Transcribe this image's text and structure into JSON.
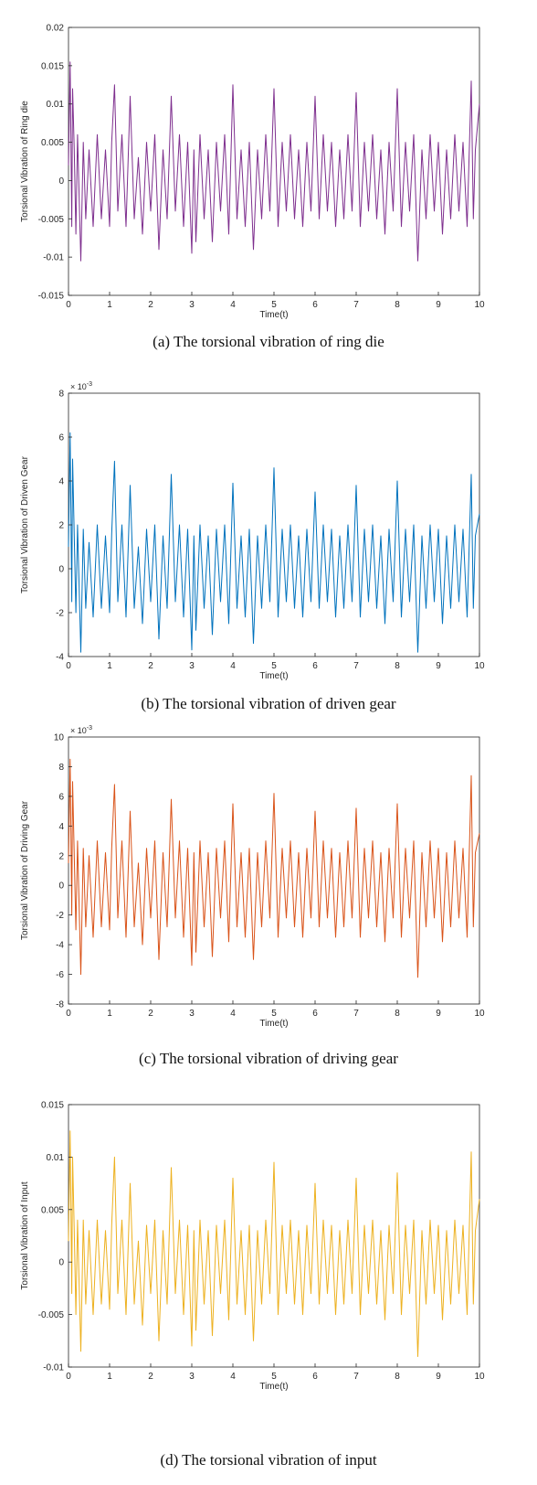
{
  "chart_data": [
    {
      "type": "line",
      "caption": "(a) The torsional vibration of ring die",
      "xlabel": "Time(t)",
      "ylabel": "Torsional Vibration of Ring  die",
      "xlim": [
        0,
        10
      ],
      "ylim": [
        -0.015,
        0.02
      ],
      "xticks": [
        "0",
        "1",
        "2",
        "3",
        "4",
        "5",
        "6",
        "7",
        "8",
        "9",
        "10"
      ],
      "yticks": [
        "0.02",
        "0.015",
        "0.01",
        "0.005",
        "0",
        "-0.005",
        "-0.01",
        "-0.015"
      ],
      "exponent": "",
      "series": [
        {
          "color": "#7E2F8E",
          "x": [
            0,
            0.04,
            0.08,
            0.1,
            0.14,
            0.18,
            0.22,
            0.3,
            0.36,
            0.42,
            0.5,
            0.6,
            0.7,
            0.8,
            0.9,
            1.0,
            1.05,
            1.12,
            1.2,
            1.3,
            1.4,
            1.5,
            1.6,
            1.7,
            1.8,
            1.9,
            2.0,
            2.1,
            2.2,
            2.3,
            2.4,
            2.5,
            2.6,
            2.7,
            2.8,
            2.9,
            3.0,
            3.05,
            3.1,
            3.2,
            3.3,
            3.4,
            3.5,
            3.6,
            3.7,
            3.8,
            3.9,
            4.0,
            4.1,
            4.2,
            4.3,
            4.4,
            4.5,
            4.6,
            4.7,
            4.8,
            4.9,
            5.0,
            5.1,
            5.2,
            5.3,
            5.4,
            5.5,
            5.6,
            5.7,
            5.8,
            5.9,
            6.0,
            6.1,
            6.2,
            6.3,
            6.4,
            6.5,
            6.6,
            6.7,
            6.8,
            6.9,
            7.0,
            7.1,
            7.2,
            7.3,
            7.4,
            7.5,
            7.6,
            7.7,
            7.8,
            7.9,
            8.0,
            8.1,
            8.2,
            8.3,
            8.4,
            8.5,
            8.6,
            8.7,
            8.8,
            8.9,
            9.0,
            9.1,
            9.2,
            9.3,
            9.4,
            9.5,
            9.6,
            9.7,
            9.8,
            9.85,
            9.9,
            10.0
          ],
          "y": [
            0.002,
            0.0155,
            -0.006,
            0.012,
            0.004,
            -0.007,
            0.006,
            -0.0105,
            0.005,
            -0.005,
            0.004,
            -0.006,
            0.006,
            -0.005,
            0.004,
            -0.006,
            0.005,
            0.0125,
            -0.004,
            0.006,
            -0.006,
            0.011,
            -0.005,
            0.003,
            -0.007,
            0.005,
            -0.004,
            0.006,
            -0.009,
            0.004,
            -0.005,
            0.011,
            -0.004,
            0.006,
            -0.006,
            0.005,
            -0.0095,
            0.004,
            -0.008,
            0.006,
            -0.005,
            0.004,
            -0.008,
            0.005,
            -0.004,
            0.006,
            -0.007,
            0.0125,
            -0.005,
            0.004,
            -0.006,
            0.005,
            -0.009,
            0.004,
            -0.005,
            0.006,
            -0.004,
            0.012,
            -0.006,
            0.005,
            -0.004,
            0.006,
            -0.005,
            0.004,
            -0.006,
            0.005,
            -0.004,
            0.011,
            -0.005,
            0.006,
            -0.004,
            0.005,
            -0.006,
            0.004,
            -0.005,
            0.006,
            -0.004,
            0.0115,
            -0.006,
            0.005,
            -0.004,
            0.006,
            -0.005,
            0.004,
            -0.007,
            0.005,
            -0.004,
            0.012,
            -0.006,
            0.005,
            -0.004,
            0.006,
            -0.0105,
            0.004,
            -0.005,
            0.006,
            -0.004,
            0.005,
            -0.007,
            0.004,
            -0.005,
            0.006,
            -0.004,
            0.005,
            -0.006,
            0.013,
            -0.005,
            0.004,
            0.01
          ]
        }
      ]
    },
    {
      "type": "line",
      "caption": "(b) The torsional vibration of driven gear",
      "xlabel": "Time(t)",
      "ylabel": "Torsional Vibration of Driven Gear",
      "xlim": [
        0,
        10
      ],
      "ylim": [
        -4,
        8
      ],
      "xticks": [
        "0",
        "1",
        "2",
        "3",
        "4",
        "5",
        "6",
        "7",
        "8",
        "9",
        "10"
      ],
      "yticks": [
        "8",
        "6",
        "4",
        "2",
        "0",
        "-2",
        "-4"
      ],
      "exponent": "10",
      "exponent_power": "-3",
      "series": [
        {
          "color": "#0072BD",
          "x": [
            0,
            0.04,
            0.08,
            0.1,
            0.14,
            0.18,
            0.22,
            0.3,
            0.36,
            0.42,
            0.5,
            0.6,
            0.7,
            0.8,
            0.9,
            1.0,
            1.05,
            1.12,
            1.2,
            1.3,
            1.4,
            1.5,
            1.6,
            1.7,
            1.8,
            1.9,
            2.0,
            2.1,
            2.2,
            2.3,
            2.4,
            2.5,
            2.6,
            2.7,
            2.8,
            2.9,
            3.0,
            3.05,
            3.1,
            3.2,
            3.3,
            3.4,
            3.5,
            3.6,
            3.7,
            3.8,
            3.9,
            4.0,
            4.1,
            4.2,
            4.3,
            4.4,
            4.5,
            4.6,
            4.7,
            4.8,
            4.9,
            5.0,
            5.1,
            5.2,
            5.3,
            5.4,
            5.5,
            5.6,
            5.7,
            5.8,
            5.9,
            6.0,
            6.1,
            6.2,
            6.3,
            6.4,
            6.5,
            6.6,
            6.7,
            6.8,
            6.9,
            7.0,
            7.1,
            7.2,
            7.3,
            7.4,
            7.5,
            7.6,
            7.7,
            7.8,
            7.9,
            8.0,
            8.1,
            8.2,
            8.3,
            8.4,
            8.5,
            8.6,
            8.7,
            8.8,
            8.9,
            9.0,
            9.1,
            9.2,
            9.3,
            9.4,
            9.5,
            9.6,
            9.7,
            9.8,
            9.85,
            9.9,
            10.0
          ],
          "y": [
            1.0,
            6.2,
            -1.5,
            5.0,
            1.5,
            -2.0,
            2.0,
            -3.8,
            1.8,
            -1.8,
            1.2,
            -2.2,
            2.0,
            -1.8,
            1.5,
            -2.0,
            1.6,
            4.9,
            -1.5,
            2.0,
            -2.2,
            3.8,
            -1.8,
            1.0,
            -2.5,
            1.8,
            -1.5,
            2.0,
            -3.2,
            1.5,
            -1.8,
            4.3,
            -1.5,
            2.0,
            -2.2,
            1.8,
            -3.7,
            1.5,
            -2.8,
            2.0,
            -1.8,
            1.5,
            -3.0,
            1.8,
            -1.5,
            2.0,
            -2.5,
            3.9,
            -1.8,
            1.5,
            -2.2,
            1.8,
            -3.4,
            1.5,
            -1.8,
            2.0,
            -1.5,
            4.6,
            -2.2,
            1.8,
            -1.5,
            2.0,
            -1.8,
            1.5,
            -2.2,
            1.8,
            -1.5,
            3.5,
            -1.8,
            2.0,
            -1.5,
            1.8,
            -2.2,
            1.5,
            -1.8,
            2.0,
            -1.5,
            3.8,
            -2.2,
            1.8,
            -1.5,
            2.0,
            -1.8,
            1.5,
            -2.5,
            1.8,
            -1.5,
            4.0,
            -2.2,
            1.8,
            -1.5,
            2.0,
            -3.8,
            1.5,
            -1.8,
            2.0,
            -1.5,
            1.8,
            -2.5,
            1.5,
            -1.8,
            2.0,
            -1.5,
            1.8,
            -2.2,
            4.3,
            -1.8,
            1.5,
            2.5
          ]
        }
      ]
    },
    {
      "type": "line",
      "caption": "(c) The torsional vibration of driving gear",
      "xlabel": "Time(t)",
      "ylabel": "Torsional Vibration of Driving Gear",
      "xlim": [
        0,
        10
      ],
      "ylim": [
        -8,
        10
      ],
      "xticks": [
        "0",
        "1",
        "2",
        "3",
        "4",
        "5",
        "6",
        "7",
        "8",
        "9",
        "10"
      ],
      "yticks": [
        "10",
        "8",
        "6",
        "4",
        "2",
        "0",
        "-2",
        "-4",
        "-6",
        "-8"
      ],
      "exponent": "10",
      "exponent_power": "-3",
      "series": [
        {
          "color": "#D95319",
          "x": [
            0,
            0.04,
            0.08,
            0.1,
            0.14,
            0.18,
            0.22,
            0.3,
            0.36,
            0.42,
            0.5,
            0.6,
            0.7,
            0.8,
            0.9,
            1.0,
            1.05,
            1.12,
            1.2,
            1.3,
            1.4,
            1.5,
            1.6,
            1.7,
            1.8,
            1.9,
            2.0,
            2.1,
            2.2,
            2.3,
            2.4,
            2.5,
            2.6,
            2.7,
            2.8,
            2.9,
            3.0,
            3.05,
            3.1,
            3.2,
            3.3,
            3.4,
            3.5,
            3.6,
            3.7,
            3.8,
            3.9,
            4.0,
            4.1,
            4.2,
            4.3,
            4.4,
            4.5,
            4.6,
            4.7,
            4.8,
            4.9,
            5.0,
            5.1,
            5.2,
            5.3,
            5.4,
            5.5,
            5.6,
            5.7,
            5.8,
            5.9,
            6.0,
            6.1,
            6.2,
            6.3,
            6.4,
            6.5,
            6.6,
            6.7,
            6.8,
            6.9,
            7.0,
            7.1,
            7.2,
            7.3,
            7.4,
            7.5,
            7.6,
            7.7,
            7.8,
            7.9,
            8.0,
            8.1,
            8.2,
            8.3,
            8.4,
            8.5,
            8.6,
            8.7,
            8.8,
            8.9,
            9.0,
            9.1,
            9.2,
            9.3,
            9.4,
            9.5,
            9.6,
            9.7,
            9.8,
            9.85,
            9.9,
            10.0
          ],
          "y": [
            1.5,
            8.5,
            -2.0,
            7.0,
            2.0,
            -3.0,
            3.0,
            -6.0,
            2.5,
            -2.8,
            2.0,
            -3.5,
            3.0,
            -2.8,
            2.2,
            -3.0,
            2.5,
            6.8,
            -2.2,
            3.0,
            -3.5,
            5.0,
            -2.8,
            1.5,
            -4.0,
            2.5,
            -2.2,
            3.0,
            -5.0,
            2.2,
            -2.8,
            5.8,
            -2.2,
            3.0,
            -3.5,
            2.5,
            -5.4,
            2.2,
            -4.5,
            3.0,
            -2.8,
            2.2,
            -4.8,
            2.5,
            -2.2,
            3.0,
            -3.8,
            5.5,
            -2.8,
            2.2,
            -3.5,
            2.5,
            -5.0,
            2.2,
            -2.8,
            3.0,
            -2.2,
            6.2,
            -3.5,
            2.5,
            -2.2,
            3.0,
            -2.8,
            2.2,
            -3.5,
            2.5,
            -2.2,
            5.0,
            -2.8,
            3.0,
            -2.2,
            2.5,
            -3.5,
            2.2,
            -2.8,
            3.0,
            -2.2,
            5.2,
            -3.5,
            2.5,
            -2.2,
            3.0,
            -2.8,
            2.2,
            -3.8,
            2.5,
            -2.2,
            5.5,
            -3.5,
            2.5,
            -2.2,
            3.0,
            -6.2,
            2.2,
            -2.8,
            3.0,
            -2.2,
            2.5,
            -3.8,
            2.2,
            -2.8,
            3.0,
            -2.2,
            2.5,
            -3.5,
            7.4,
            -2.8,
            2.2,
            3.5
          ]
        }
      ]
    },
    {
      "type": "line",
      "caption": "(d) The torsional vibration of input",
      "xlabel": "Time(t)",
      "ylabel": "Torsional Vibration of Input",
      "xlim": [
        0,
        10
      ],
      "ylim": [
        -0.01,
        0.015
      ],
      "xticks": [
        "0",
        "1",
        "2",
        "3",
        "4",
        "5",
        "6",
        "7",
        "8",
        "9",
        "10"
      ],
      "yticks": [
        "0.015",
        "0.01",
        "0.005",
        "0",
        "-0.005",
        "-0.01"
      ],
      "exponent": "",
      "series": [
        {
          "color": "#EDB120",
          "x": [
            0,
            0.04,
            0.08,
            0.1,
            0.14,
            0.18,
            0.22,
            0.3,
            0.36,
            0.42,
            0.5,
            0.6,
            0.7,
            0.8,
            0.9,
            1.0,
            1.05,
            1.12,
            1.2,
            1.3,
            1.4,
            1.5,
            1.6,
            1.7,
            1.8,
            1.9,
            2.0,
            2.1,
            2.2,
            2.3,
            2.4,
            2.5,
            2.6,
            2.7,
            2.8,
            2.9,
            3.0,
            3.05,
            3.1,
            3.2,
            3.3,
            3.4,
            3.5,
            3.6,
            3.7,
            3.8,
            3.9,
            4.0,
            4.1,
            4.2,
            4.3,
            4.4,
            4.5,
            4.6,
            4.7,
            4.8,
            4.9,
            5.0,
            5.1,
            5.2,
            5.3,
            5.4,
            5.5,
            5.6,
            5.7,
            5.8,
            5.9,
            6.0,
            6.1,
            6.2,
            6.3,
            6.4,
            6.5,
            6.6,
            6.7,
            6.8,
            6.9,
            7.0,
            7.1,
            7.2,
            7.3,
            7.4,
            7.5,
            7.6,
            7.7,
            7.8,
            7.9,
            8.0,
            8.1,
            8.2,
            8.3,
            8.4,
            8.5,
            8.6,
            8.7,
            8.8,
            8.9,
            9.0,
            9.1,
            9.2,
            9.3,
            9.4,
            9.5,
            9.6,
            9.7,
            9.8,
            9.85,
            9.9,
            10.0
          ],
          "y": [
            0.002,
            0.0125,
            -0.003,
            0.01,
            0.003,
            -0.005,
            0.004,
            -0.0085,
            0.004,
            -0.004,
            0.003,
            -0.005,
            0.004,
            -0.004,
            0.003,
            -0.0045,
            0.0035,
            0.01,
            -0.003,
            0.004,
            -0.005,
            0.0075,
            -0.004,
            0.002,
            -0.006,
            0.0035,
            -0.003,
            0.004,
            -0.0075,
            0.003,
            -0.004,
            0.009,
            -0.003,
            0.004,
            -0.005,
            0.0035,
            -0.008,
            0.003,
            -0.0065,
            0.004,
            -0.004,
            0.003,
            -0.007,
            0.0035,
            -0.003,
            0.004,
            -0.0055,
            0.008,
            -0.004,
            0.003,
            -0.005,
            0.0035,
            -0.0075,
            0.003,
            -0.004,
            0.004,
            -0.003,
            0.0095,
            -0.005,
            0.0035,
            -0.003,
            0.004,
            -0.004,
            0.003,
            -0.005,
            0.0035,
            -0.003,
            0.0075,
            -0.004,
            0.004,
            -0.003,
            0.0035,
            -0.005,
            0.003,
            -0.004,
            0.004,
            -0.003,
            0.008,
            -0.005,
            0.0035,
            -0.003,
            0.004,
            -0.004,
            0.003,
            -0.0055,
            0.0035,
            -0.003,
            0.0085,
            -0.005,
            0.0035,
            -0.003,
            0.004,
            -0.009,
            0.003,
            -0.004,
            0.004,
            -0.003,
            0.0035,
            -0.0055,
            0.003,
            -0.004,
            0.004,
            -0.003,
            0.0035,
            -0.005,
            0.0105,
            -0.004,
            0.003,
            0.006
          ]
        }
      ]
    }
  ]
}
